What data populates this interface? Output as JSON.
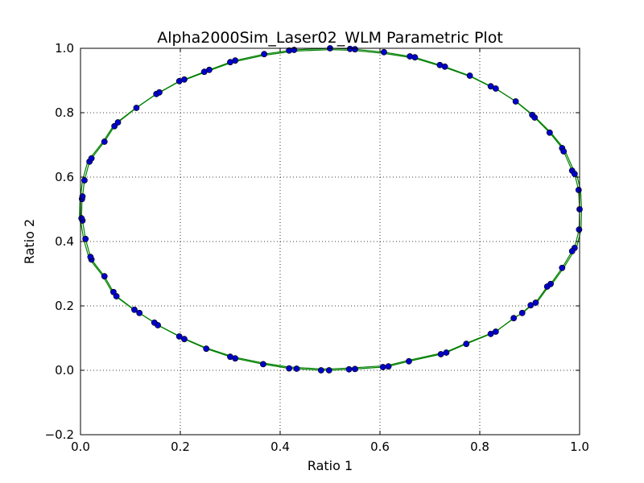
{
  "chart_data": {
    "type": "scatter",
    "title": "Alpha2000Sim_Laser02_WLM Parametric Plot",
    "xlabel": "Ratio 1",
    "ylabel": "Ratio 2",
    "xlim": [
      0.0,
      1.0
    ],
    "ylim": [
      -0.2,
      1.0
    ],
    "xticks": [
      "0.0",
      "0.2",
      "0.4",
      "0.6",
      "0.8",
      "1.0"
    ],
    "yticks": [
      "−0.2",
      "0.0",
      "0.2",
      "0.4",
      "0.6",
      "0.8",
      "1.0"
    ],
    "xtick_values": [
      0.0,
      0.2,
      0.4,
      0.6,
      0.8,
      1.0
    ],
    "ytick_values": [
      -0.2,
      0.0,
      0.2,
      0.4,
      0.6,
      0.8,
      1.0
    ],
    "grid": true,
    "grid_style": "dotted",
    "colors": {
      "points": "#0000cc",
      "fit_line": "#008000",
      "point_edge": "#000000"
    },
    "series": [
      {
        "marker": "circle",
        "x": [
          0.5,
          0.54,
          0.55,
          0.608,
          0.66,
          0.67,
          0.72,
          0.73,
          0.78,
          0.822,
          0.832,
          0.872,
          0.905,
          0.91,
          0.94,
          0.965,
          0.968,
          0.985,
          0.99,
          0.998,
          1.0,
          0.999,
          0.99,
          0.985,
          0.965,
          0.942,
          0.935,
          0.912,
          0.902,
          0.885,
          0.868,
          0.832,
          0.822,
          0.773,
          0.733,
          0.722,
          0.658,
          0.617,
          0.606,
          0.55,
          0.538,
          0.498,
          0.482,
          0.433,
          0.418,
          0.366,
          0.31,
          0.3,
          0.252,
          0.208,
          0.198,
          0.155,
          0.148,
          0.118,
          0.108,
          0.072,
          0.066,
          0.048,
          0.022,
          0.02,
          0.01,
          0.004,
          0.002,
          0.003,
          0.004,
          0.008,
          0.018,
          0.022,
          0.048,
          0.068,
          0.075,
          0.112,
          0.152,
          0.158,
          0.198,
          0.208,
          0.248,
          0.258,
          0.3,
          0.31,
          0.368,
          0.418,
          0.428
        ],
        "y": [
          1.0,
          0.998,
          0.997,
          0.988,
          0.975,
          0.972,
          0.948,
          0.943,
          0.915,
          0.882,
          0.875,
          0.835,
          0.793,
          0.785,
          0.738,
          0.69,
          0.68,
          0.62,
          0.61,
          0.56,
          0.5,
          0.437,
          0.38,
          0.37,
          0.318,
          0.268,
          0.26,
          0.21,
          0.202,
          0.178,
          0.162,
          0.12,
          0.113,
          0.082,
          0.055,
          0.05,
          0.028,
          0.012,
          0.01,
          0.004,
          0.003,
          0.0,
          0.0,
          0.005,
          0.006,
          0.019,
          0.037,
          0.042,
          0.067,
          0.097,
          0.105,
          0.14,
          0.148,
          0.178,
          0.188,
          0.23,
          0.243,
          0.292,
          0.344,
          0.352,
          0.408,
          0.465,
          0.472,
          0.532,
          0.54,
          0.59,
          0.648,
          0.658,
          0.71,
          0.758,
          0.77,
          0.815,
          0.858,
          0.863,
          0.898,
          0.903,
          0.927,
          0.933,
          0.957,
          0.962,
          0.982,
          0.993,
          0.995
        ]
      }
    ]
  }
}
